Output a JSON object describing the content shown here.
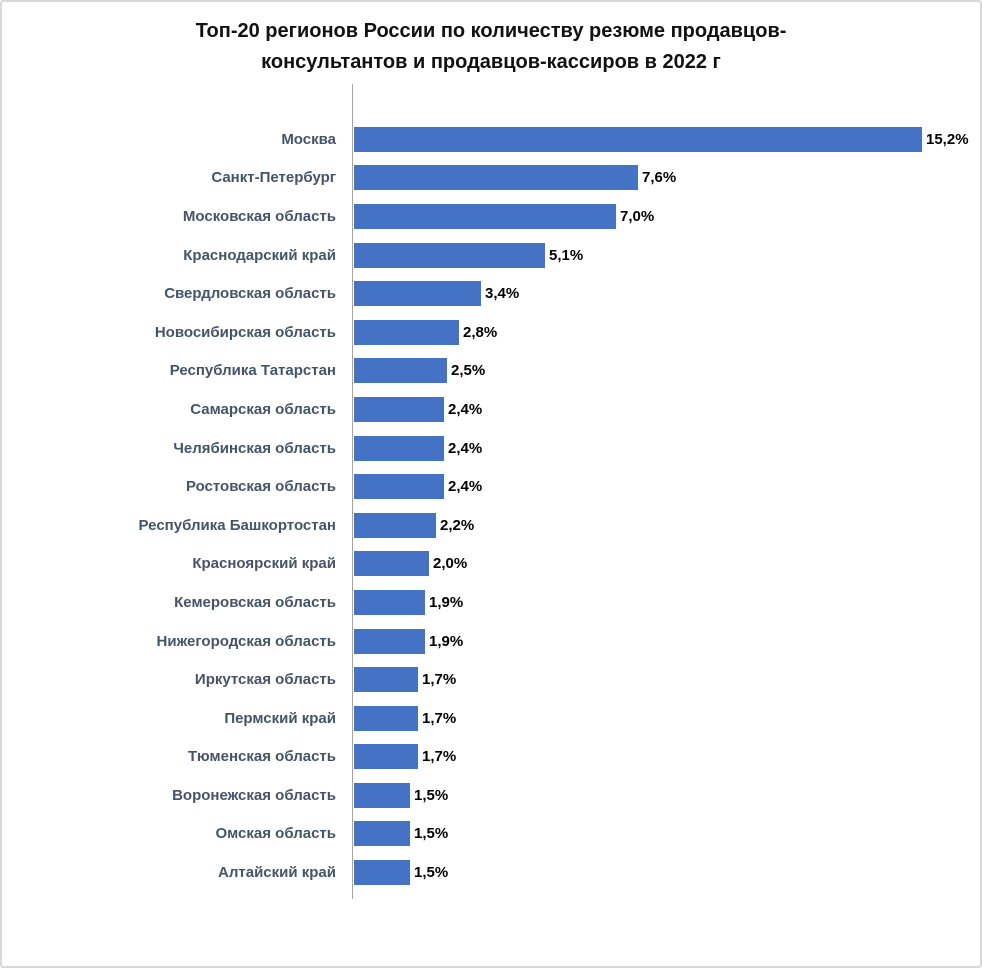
{
  "page": {
    "background": "#ffffff",
    "border_color": "#d9d9d9"
  },
  "chart_data": {
    "type": "bar",
    "orientation": "horizontal",
    "title": "Топ-20 регионов России по количеству резюме продавцов-консультантов и продавцов-кассиров в 2022 г",
    "categories": [
      "Москва",
      "Санкт-Петербург",
      "Московская область",
      "Краснодарский край",
      "Свердловская область",
      "Новосибирская область",
      "Республика Татарстан",
      "Самарская область",
      "Челябинская область",
      "Ростовская область",
      "Республика Башкортостан",
      "Красноярский край",
      "Кемеровская область",
      "Нижегородская область",
      "Иркутская область",
      "Пермский край",
      "Тюменская область",
      "Воронежская область",
      "Омская область",
      "Алтайский край"
    ],
    "values": [
      15.2,
      7.6,
      7.0,
      5.1,
      3.4,
      2.8,
      2.5,
      2.4,
      2.4,
      2.4,
      2.2,
      2.0,
      1.9,
      1.9,
      1.7,
      1.7,
      1.7,
      1.5,
      1.5,
      1.5
    ],
    "value_labels": [
      "15,2%",
      "7,6%",
      "7,0%",
      "5,1%",
      "3,4%",
      "2,8%",
      "2,5%",
      "2,4%",
      "2,4%",
      "2,4%",
      "2,2%",
      "2,0%",
      "1,9%",
      "1,9%",
      "1,7%",
      "1,7%",
      "1,7%",
      "1,5%",
      "1,5%",
      "1,5%"
    ],
    "xlabel": "",
    "ylabel": "",
    "xlim": [
      0,
      16
    ],
    "grid": false,
    "legend": false,
    "bar_color": "#4472C4",
    "label_color": "#44546A",
    "value_color": "#000000",
    "axis_color": "#a6a6a6"
  }
}
